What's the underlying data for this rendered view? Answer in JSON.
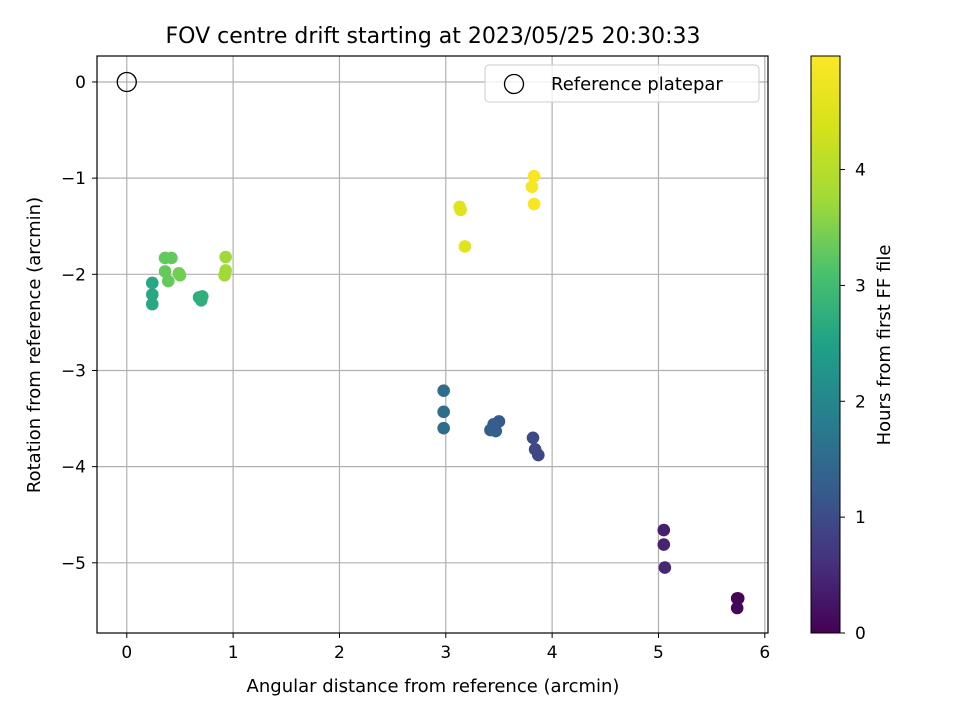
{
  "chart_data": {
    "type": "scatter",
    "title": "FOV centre drift starting at 2023/05/25 20:30:33",
    "xlabel": "Angular distance from reference (arcmin)",
    "ylabel": "Rotation from reference (arcmin)",
    "xlim": [
      -0.28,
      6.03
    ],
    "ylim": [
      -5.73,
      0.27
    ],
    "x_ticks": [
      0,
      1,
      2,
      3,
      4,
      5,
      6
    ],
    "y_ticks": [
      0,
      -1,
      -2,
      -3,
      -4,
      -5
    ],
    "x_tick_labels": [
      "0",
      "1",
      "2",
      "3",
      "4",
      "5",
      "6"
    ],
    "y_tick_labels": [
      "0",
      "−1",
      "−2",
      "−3",
      "−4",
      "−5"
    ],
    "grid": true,
    "legend": {
      "position": "upper-right",
      "entries": [
        {
          "label": "Reference platepar",
          "marker": "open-circle"
        }
      ]
    },
    "reference_point": {
      "x": 0,
      "y": 0
    },
    "colorbar": {
      "label": "Hours from first FF file",
      "min": 0,
      "max": 4.98,
      "ticks": [
        0,
        1,
        2,
        3,
        4
      ],
      "tick_labels": [
        "0",
        "1",
        "2",
        "3",
        "4"
      ],
      "colormap": "viridis"
    },
    "series": [
      {
        "points": [
          {
            "x": 5.74,
            "y": -5.37,
            "t": 0.02
          },
          {
            "x": 5.75,
            "y": -5.37,
            "t": 0.05
          },
          {
            "x": 5.74,
            "y": -5.47,
            "t": 0.08
          },
          {
            "x": 5.05,
            "y": -4.66,
            "t": 0.4
          },
          {
            "x": 5.05,
            "y": -4.81,
            "t": 0.45
          },
          {
            "x": 5.06,
            "y": -5.05,
            "t": 0.5
          },
          {
            "x": 3.87,
            "y": -3.88,
            "t": 0.9
          },
          {
            "x": 3.84,
            "y": -3.82,
            "t": 0.95
          },
          {
            "x": 3.82,
            "y": -3.7,
            "t": 1.0
          },
          {
            "x": 3.5,
            "y": -3.53,
            "t": 1.2
          },
          {
            "x": 3.45,
            "y": -3.56,
            "t": 1.25
          },
          {
            "x": 3.42,
            "y": -3.62,
            "t": 1.28
          },
          {
            "x": 3.47,
            "y": -3.63,
            "t": 1.3
          },
          {
            "x": 2.98,
            "y": -3.21,
            "t": 1.55
          },
          {
            "x": 2.98,
            "y": -3.43,
            "t": 1.55
          },
          {
            "x": 2.98,
            "y": -3.6,
            "t": 1.55
          },
          {
            "x": 0.24,
            "y": -2.09,
            "t": 2.6
          },
          {
            "x": 0.24,
            "y": -2.21,
            "t": 2.6
          },
          {
            "x": 0.24,
            "y": -2.31,
            "t": 2.6
          },
          {
            "x": 0.68,
            "y": -2.24,
            "t": 2.75
          },
          {
            "x": 0.71,
            "y": -2.23,
            "t": 2.75
          },
          {
            "x": 0.7,
            "y": -2.27,
            "t": 2.75
          },
          {
            "x": 0.36,
            "y": -1.83,
            "t": 3.3
          },
          {
            "x": 0.42,
            "y": -1.83,
            "t": 3.3
          },
          {
            "x": 0.36,
            "y": -1.97,
            "t": 3.3
          },
          {
            "x": 0.39,
            "y": -2.07,
            "t": 3.3
          },
          {
            "x": 0.49,
            "y": -1.99,
            "t": 3.4
          },
          {
            "x": 0.5,
            "y": -2.01,
            "t": 3.4
          },
          {
            "x": 0.93,
            "y": -1.82,
            "t": 3.75
          },
          {
            "x": 0.93,
            "y": -1.96,
            "t": 3.75
          },
          {
            "x": 0.92,
            "y": -2.01,
            "t": 3.75
          },
          {
            "x": 3.13,
            "y": -1.3,
            "t": 4.55
          },
          {
            "x": 3.14,
            "y": -1.33,
            "t": 4.55
          },
          {
            "x": 3.18,
            "y": -1.71,
            "t": 4.55
          },
          {
            "x": 3.83,
            "y": -0.98,
            "t": 4.9
          },
          {
            "x": 3.81,
            "y": -1.09,
            "t": 4.9
          },
          {
            "x": 3.83,
            "y": -1.27,
            "t": 4.9
          }
        ]
      }
    ]
  }
}
